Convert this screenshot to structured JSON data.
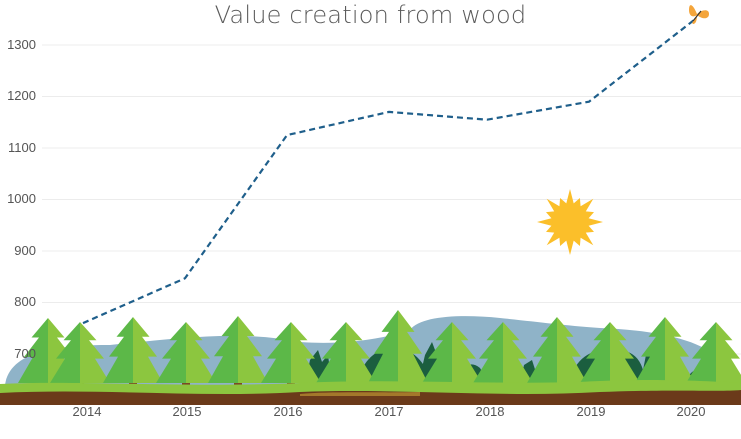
{
  "chart_data": {
    "type": "line",
    "title": "Value creation from wood",
    "xlabel": "",
    "ylabel": "",
    "categories": [
      "2014",
      "2015",
      "2016",
      "2017",
      "2018",
      "2019",
      "2020"
    ],
    "series": [
      {
        "name": "Value creation",
        "values": [
          760,
          847,
          1125,
          1170,
          1155,
          1190,
          1350
        ],
        "color": "#1f5f8b",
        "style": "dashed"
      }
    ],
    "y_ticks": [
      "1300",
      "1200",
      "1100",
      "1000",
      "900",
      "800",
      "700"
    ],
    "ylim": [
      650,
      1370
    ],
    "grid": true,
    "legend": "none",
    "decorations": [
      "pine-tree-forest",
      "sun",
      "butterfly",
      "mountains"
    ]
  },
  "colors": {
    "line": "#1f5f8b",
    "tree_light": "#8cc63f",
    "tree_mid": "#5cb848",
    "trunk": "#7a4a25",
    "ground_top": "#8cc63f",
    "ground_soil": "#6b3a1a",
    "mountain": "#8fb3c8",
    "bush_dark": "#1b5e3f",
    "sun": "#fbbf2a",
    "butterfly": "#f4a53b"
  }
}
